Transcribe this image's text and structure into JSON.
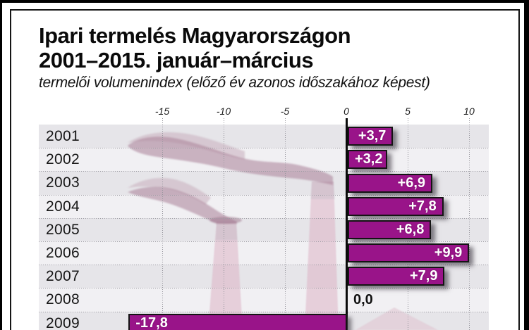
{
  "header": {
    "title_line1": "Ipari termelés Magyarországon",
    "title_line2": "2001–2015. január–március",
    "subtitle": "termelői volumenindex (előző év azonos időszakához képest)"
  },
  "chart_data": {
    "type": "bar",
    "orientation": "horizontal",
    "title": "Ipari termelés Magyarországon 2001–2015. január–március",
    "subtitle": "termelői volumenindex (előző év azonos időszakához képest)",
    "categories": [
      "2001",
      "2002",
      "2003",
      "2004",
      "2005",
      "2006",
      "2007",
      "2008",
      "2009"
    ],
    "values": [
      3.7,
      3.2,
      6.9,
      7.8,
      6.8,
      9.9,
      7.9,
      0.0,
      -17.8
    ],
    "value_labels": [
      "+3,7",
      "+3,2",
      "+6,9",
      "+7,8",
      "+6,8",
      "+9,9",
      "+7,9",
      "0,0",
      "-17,8"
    ],
    "x_ticks": [
      -15,
      -10,
      -5,
      0,
      5,
      10
    ],
    "x_tick_labels": [
      "-15",
      "-10",
      "-5",
      "0",
      "5",
      "10"
    ],
    "xlim": [
      -25,
      11.6
    ],
    "grid": "dotted",
    "legend": "none"
  },
  "colors": {
    "bar_fill": "#991489",
    "bar_border": "#141414",
    "row_dark": "#E6E5E9",
    "row_light": "#F1F0F3",
    "grid_dot": "#97969d",
    "axis": "#0b0b0b",
    "smoke_light": "rgba(203,180,194,0.62)",
    "smoke_dark": "rgba(172,132,155,0.58)",
    "chimney": "rgba(219,174,194,0.50)",
    "chimney_cap": "rgba(201,192,203,0.48)",
    "roof": "rgba(224,196,209,0.58)"
  }
}
